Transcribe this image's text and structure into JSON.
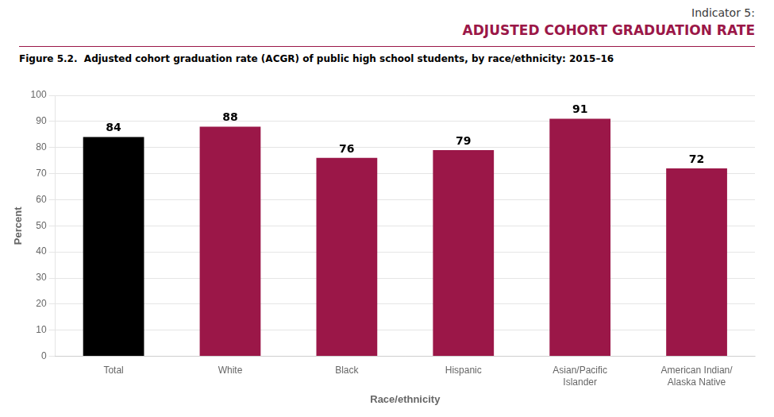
{
  "chart_data": {
    "type": "bar",
    "annotations": [
      "Indicator 5:",
      "ADJUSTED COHORT GRADUATION RATE"
    ],
    "title": "Figure 5.2.  Adjusted cohort graduation rate (ACGR) of public high school students, by race/ethnicity: 2015–16",
    "y_label": "Percent",
    "x_label": "Race/ethnicity",
    "categories": [
      "Total",
      "White",
      "Black",
      "Hispanic",
      "Asian/Pacific\nIslander",
      "American Indian/\nAlaska Native"
    ],
    "values": [
      84,
      88,
      76,
      79,
      91,
      72
    ],
    "colors": [
      "#000000",
      "#9B1748",
      "#9B1748",
      "#9B1748",
      "#9B1748",
      "#9B1748"
    ],
    "ylim": [
      0,
      100
    ],
    "yticks": [
      0,
      10,
      20,
      30,
      40,
      50,
      60,
      70,
      80,
      90,
      100
    ],
    "grid": true,
    "data_labels": true
  }
}
